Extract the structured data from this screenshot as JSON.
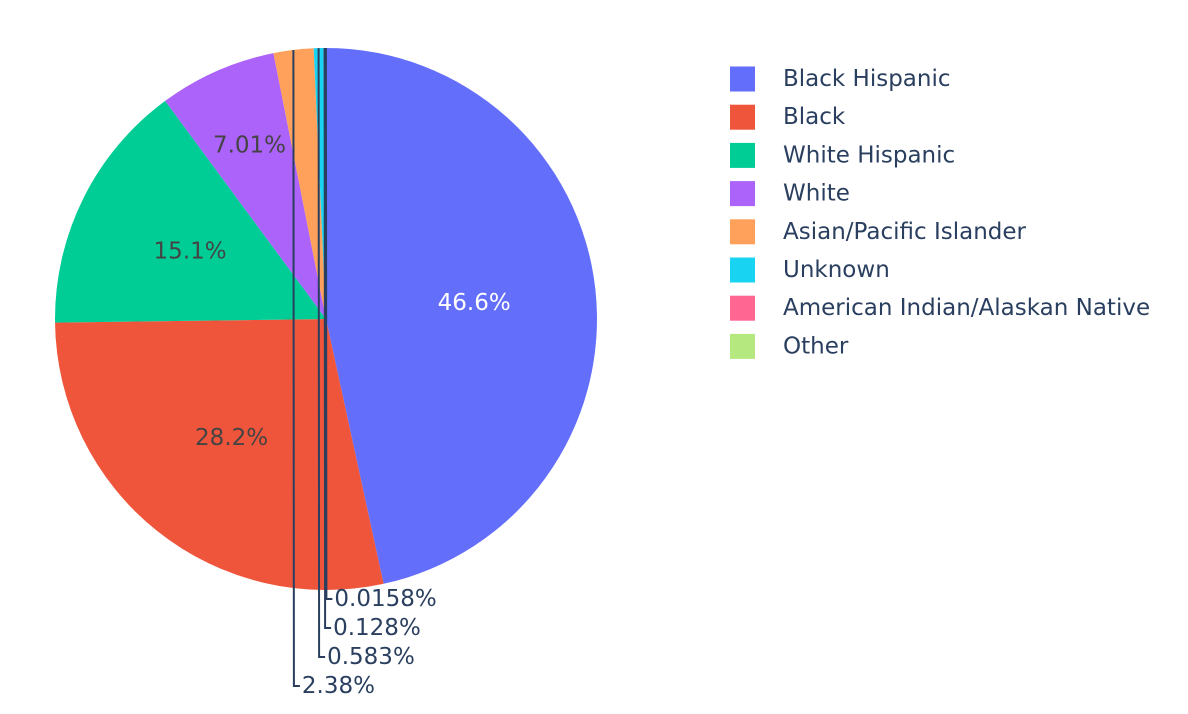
{
  "chart_data": {
    "type": "pie",
    "title": "",
    "direction": "clockwise",
    "start": "12 o'clock",
    "legend": "right",
    "slices": [
      {
        "label": "Black Hispanic",
        "value": 46.6,
        "text": "46.6%",
        "color": "#636efa",
        "text_color": "#ffffff",
        "text_position": "inside"
      },
      {
        "label": "Black",
        "value": 28.2,
        "text": "28.2%",
        "color": "#ef553b",
        "text_color": "#444444",
        "text_position": "inside"
      },
      {
        "label": "White Hispanic",
        "value": 15.1,
        "text": "15.1%",
        "color": "#00cc96",
        "text_color": "#444444",
        "text_position": "inside"
      },
      {
        "label": "White",
        "value": 7.01,
        "text": "7.01%",
        "color": "#ab63fa",
        "text_color": "#444444",
        "text_position": "inside"
      },
      {
        "label": "Asian/Pacific Islander",
        "value": 2.38,
        "text": "2.38%",
        "color": "#ffa15a",
        "text_color": "#2a3f5f",
        "text_position": "outside"
      },
      {
        "label": "Unknown",
        "value": 0.583,
        "text": "0.583%",
        "color": "#19d3f3",
        "text_color": "#2a3f5f",
        "text_position": "outside"
      },
      {
        "label": "American Indian/Alaskan Native",
        "value": 0.128,
        "text": "0.128%",
        "color": "#ff6692",
        "text_color": "#2a3f5f",
        "text_position": "outside"
      },
      {
        "label": "Other",
        "value": 0.0158,
        "text": "0.0158%",
        "color": "#b6e880",
        "text_color": "#2a3f5f",
        "text_position": "outside"
      }
    ]
  }
}
